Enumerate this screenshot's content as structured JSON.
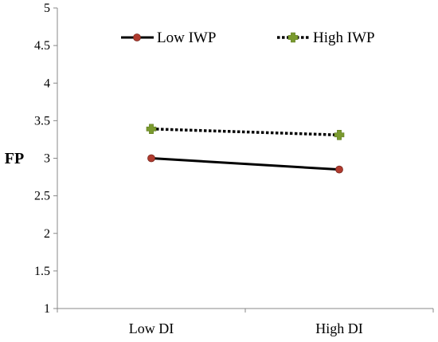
{
  "chart_data": {
    "type": "line",
    "categories": [
      "Low DI",
      "High DI"
    ],
    "ylabel": "FP",
    "xlabel": "",
    "ylim": [
      1,
      5
    ],
    "yticks": [
      1,
      1.5,
      2,
      2.5,
      3,
      3.5,
      4,
      4.5,
      5
    ],
    "ytick_labels": [
      "1",
      "1.5",
      "2",
      "2.5",
      "3",
      "3.5",
      "4",
      "4.5",
      "5"
    ],
    "grid": false,
    "legend_position": "top",
    "series": [
      {
        "name": "Low IWP",
        "values": [
          3.0,
          2.85
        ],
        "color": "#000000",
        "marker_color": "#b03a2e",
        "line_style": "solid",
        "marker": "circle"
      },
      {
        "name": "High IWP",
        "values": [
          3.39,
          3.31
        ],
        "color": "#000000",
        "marker_color": "#7a9a2e",
        "line_style": "dotted",
        "marker": "plus"
      }
    ]
  }
}
